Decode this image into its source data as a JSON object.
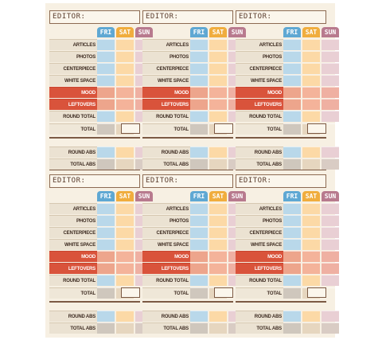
{
  "form": {
    "editor_label": "EDITOR:",
    "days": [
      "FRI",
      "SAT",
      "SUN"
    ],
    "rows": [
      "ARTICLES",
      "PHOTOS",
      "CENTERPIECE",
      "WHITE SPACE",
      "MOOD",
      "LEFTOVERS",
      "ROUND TOTAL",
      "TOTAL"
    ],
    "abs_rows": [
      "ROUND ABS",
      "TOTAL ABS"
    ]
  },
  "colors": {
    "fri": "#5fa8d3",
    "sat": "#f0ad3e",
    "sun": "#b87a8e",
    "label_red": "#d9533b"
  }
}
